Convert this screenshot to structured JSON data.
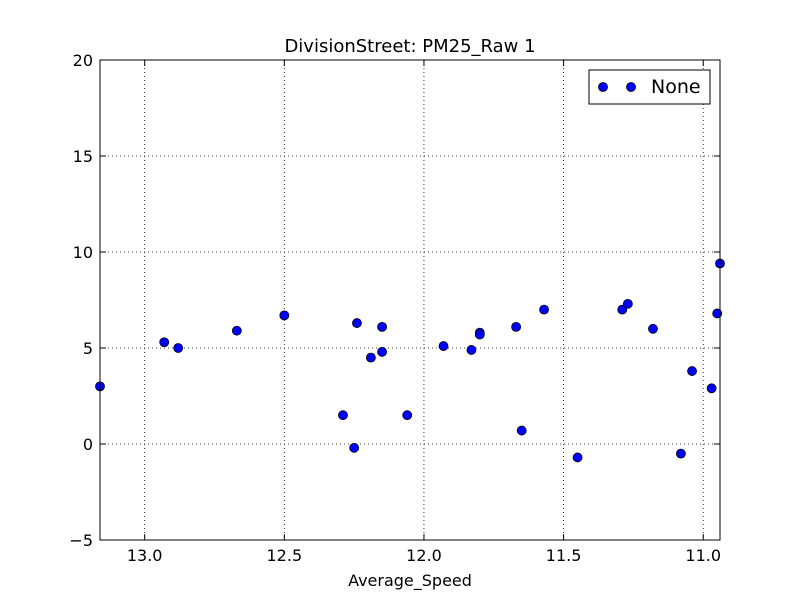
{
  "chart_data": {
    "type": "scatter",
    "title": "DivisionStreet: PM25_Raw 1",
    "xlabel": "Average_Speed",
    "ylabel": "",
    "xlim": [
      13.16,
      10.94
    ],
    "ylim": [
      -5,
      20
    ],
    "x_inverted": true,
    "xticks": [
      13.0,
      12.5,
      12.0,
      11.5,
      11.0
    ],
    "xtick_labels": [
      "13.0",
      "12.5",
      "12.0",
      "11.5",
      "11.0"
    ],
    "yticks": [
      -5,
      0,
      5,
      10,
      15,
      20
    ],
    "ytick_labels": [
      "−5",
      "0",
      "5",
      "10",
      "15",
      "20"
    ],
    "grid": true,
    "legend_position": "top-right",
    "series": [
      {
        "name": "None",
        "color": "#0000ff",
        "marker": "circle",
        "points": [
          [
            13.16,
            3.0
          ],
          [
            12.93,
            5.3
          ],
          [
            12.88,
            5.0
          ],
          [
            12.67,
            5.9
          ],
          [
            12.5,
            6.7
          ],
          [
            12.29,
            1.5
          ],
          [
            12.25,
            -0.2
          ],
          [
            12.24,
            6.3
          ],
          [
            12.19,
            4.5
          ],
          [
            12.15,
            6.1
          ],
          [
            12.15,
            4.8
          ],
          [
            12.06,
            1.5
          ],
          [
            11.93,
            5.1
          ],
          [
            11.83,
            4.9
          ],
          [
            11.8,
            5.8
          ],
          [
            11.8,
            5.7
          ],
          [
            11.67,
            6.1
          ],
          [
            11.65,
            0.7
          ],
          [
            11.57,
            7.0
          ],
          [
            11.45,
            -0.7
          ],
          [
            11.29,
            7.0
          ],
          [
            11.27,
            7.3
          ],
          [
            11.18,
            6.0
          ],
          [
            11.08,
            -0.5
          ],
          [
            11.04,
            3.8
          ],
          [
            10.97,
            2.9
          ],
          [
            10.95,
            6.8
          ],
          [
            10.94,
            9.4
          ]
        ]
      }
    ]
  }
}
